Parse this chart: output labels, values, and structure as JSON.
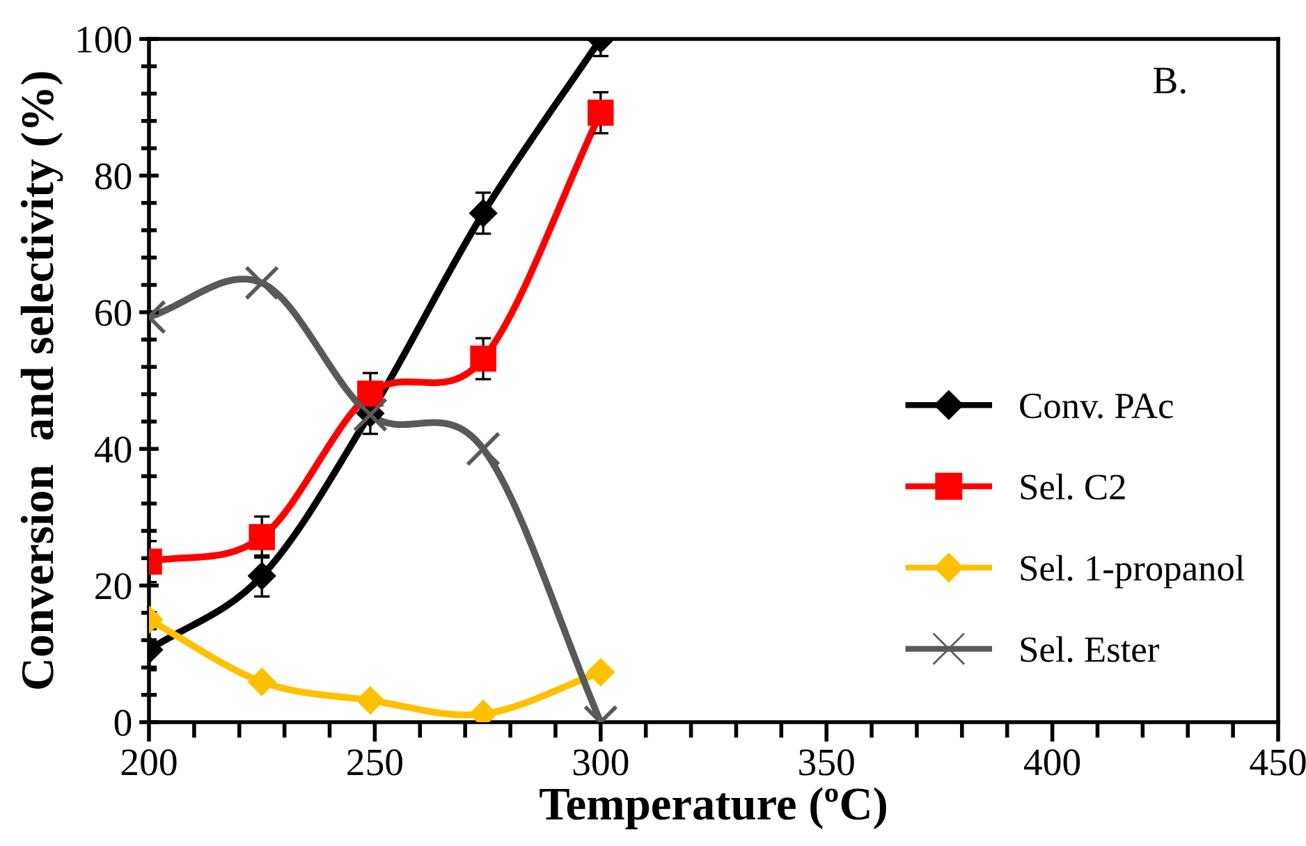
{
  "chart_data": {
    "type": "line",
    "xlabel": "Temperature (ºC)",
    "ylabel": "Conversion  and selectivity (%)",
    "annotations": [
      "B."
    ],
    "xlim": [
      200,
      450
    ],
    "xticks": [
      200,
      250,
      300,
      350,
      400,
      450
    ],
    "ylim": [
      0,
      100
    ],
    "yticks": [
      0,
      20,
      40,
      60,
      80,
      100
    ],
    "grid": false,
    "legend": "right",
    "series": [
      {
        "name": "Conv. PAc",
        "color": "#000000",
        "marker": "diamond",
        "x": [
          200,
          225,
          249,
          274,
          300
        ],
        "values": [
          10.6,
          21.4,
          45.2,
          74.5,
          100
        ],
        "errors": [
          3,
          3,
          3,
          3,
          2.5
        ]
      },
      {
        "name": "Sel. C2",
        "color": "#ff0000",
        "marker": "square",
        "x": [
          200,
          225,
          249,
          274,
          300
        ],
        "values": [
          23.5,
          27.1,
          48.1,
          53.2,
          89.2
        ],
        "errors": [
          3,
          3,
          3,
          3,
          3
        ]
      },
      {
        "name": "Sel. 1-propanol",
        "color": "#ffc000",
        "marker": "diamond",
        "x": [
          200,
          225,
          249,
          274,
          300
        ],
        "values": [
          15,
          5.9,
          3.2,
          1.2,
          7.3
        ]
      },
      {
        "name": "Sel. Ester",
        "color": "#595959",
        "marker": "cross",
        "x": [
          200,
          225,
          249,
          274,
          300
        ],
        "values": [
          59.3,
          64.3,
          45,
          40,
          0
        ]
      }
    ]
  }
}
